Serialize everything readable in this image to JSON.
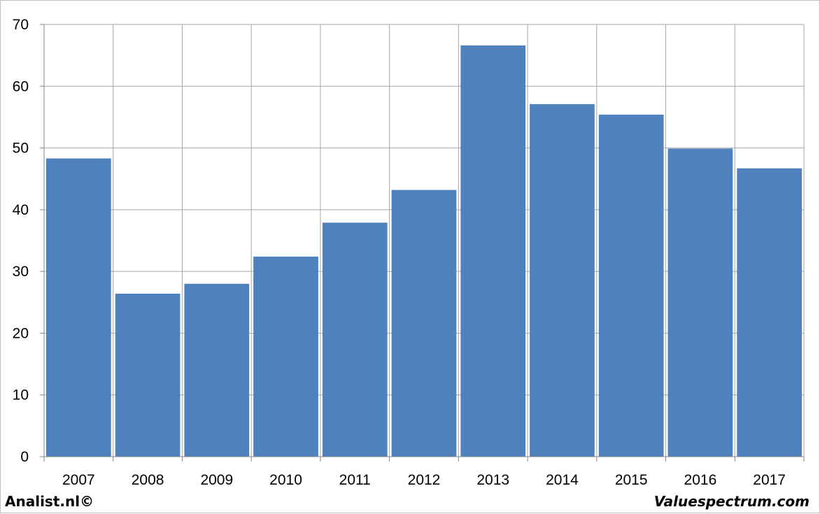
{
  "chart_data": {
    "type": "bar",
    "categories": [
      "2007",
      "2008",
      "2009",
      "2010",
      "2011",
      "2012",
      "2013",
      "2014",
      "2015",
      "2016",
      "2017"
    ],
    "values": [
      48.3,
      26.4,
      28.0,
      32.4,
      37.9,
      43.2,
      66.6,
      57.1,
      55.4,
      49.9,
      46.7
    ],
    "title": "",
    "xlabel": "",
    "ylabel": "",
    "ylim": [
      0,
      70
    ],
    "yticks": [
      "0",
      "10",
      "20",
      "30",
      "40",
      "50",
      "60",
      "70"
    ],
    "grid": true,
    "bar_color": "#4f81bd",
    "grid_color": "#a6a6a6"
  },
  "footer": {
    "left": "Analist.nl©",
    "right": "Valuespectrum.com"
  }
}
